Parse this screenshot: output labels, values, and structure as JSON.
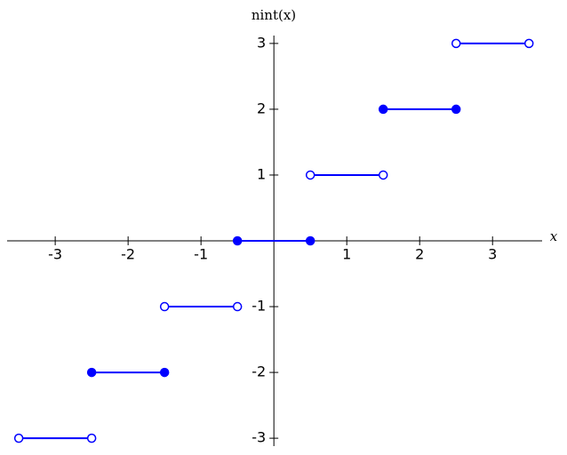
{
  "chart_data": {
    "type": "step",
    "ylabel": "nint(x)",
    "xlabel": "x",
    "color": "#0000ff",
    "xlim": [
      -3.66,
      3.68
    ],
    "ylim": [
      -3.12,
      3.12
    ],
    "xticks": [
      -3,
      -2,
      -1,
      1,
      2,
      3
    ],
    "yticks": [
      -3,
      -2,
      -1,
      1,
      2,
      3
    ],
    "segments": [
      {
        "x": [
          -3.5,
          -2.5
        ],
        "y": [
          -3,
          -3
        ],
        "closed": [
          false,
          false
        ]
      },
      {
        "x": [
          -2.5,
          -1.5
        ],
        "y": [
          -2,
          -2
        ],
        "closed": [
          true,
          true
        ]
      },
      {
        "x": [
          -1.5,
          -0.5
        ],
        "y": [
          -1,
          -1
        ],
        "closed": [
          false,
          false
        ]
      },
      {
        "x": [
          -0.5,
          0.5
        ],
        "y": [
          0,
          0
        ],
        "closed": [
          true,
          true
        ]
      },
      {
        "x": [
          0.5,
          1.5
        ],
        "y": [
          1,
          1
        ],
        "closed": [
          false,
          false
        ]
      },
      {
        "x": [
          1.5,
          2.5
        ],
        "y": [
          2,
          2
        ],
        "closed": [
          true,
          true
        ]
      },
      {
        "x": [
          2.5,
          3.5
        ],
        "y": [
          3,
          3
        ],
        "closed": [
          false,
          false
        ]
      }
    ]
  }
}
